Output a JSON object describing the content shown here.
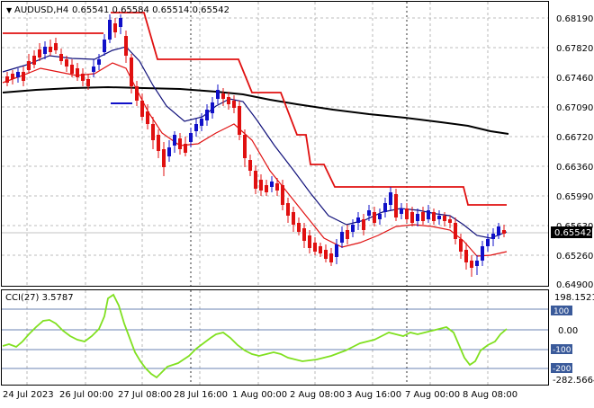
{
  "window": {
    "symbol_title": "AUDUSD,H4",
    "ohlc": "0.65541 0.65584 0.65514 0.65542",
    "arrow_glyph": "▼"
  },
  "price_axis": {
    "labels": [
      "0.68190",
      "0.67820",
      "0.67460",
      "0.67090",
      "0.66720",
      "0.66360",
      "0.65990",
      "0.65630",
      "0.65260",
      "0.64900"
    ],
    "current_price": "0.65542"
  },
  "cci": {
    "label": "CCI(27) 3.5787",
    "axis_labels": [
      "198.1521",
      "0.00",
      "-282.5664"
    ],
    "level_labels": [
      "100",
      "-100",
      "-200"
    ]
  },
  "time_axis": {
    "labels": [
      "24 Jul 2023",
      "26 Jul 00:00",
      "27 Jul 08:00",
      "28 Jul 16:00",
      "1 Aug 00:00",
      "2 Aug 08:00",
      "3 Aug 16:00",
      "7 Aug 00:00",
      "8 Aug 08:00"
    ]
  },
  "colors": {
    "bull": "#1010c8",
    "bear": "#e01010",
    "ema_fast": "#e01010",
    "ema_slow": "#10107a",
    "ma_long": "#000000",
    "stop_line": "#e01010",
    "cci_line": "#80e020",
    "level_line": "#3a5a9a",
    "grid": "#a8a8a8",
    "price_box": "#000000",
    "price_tag": "#ffffff"
  },
  "icons": {
    "symbol_arrow": "triangle-down-icon"
  }
}
